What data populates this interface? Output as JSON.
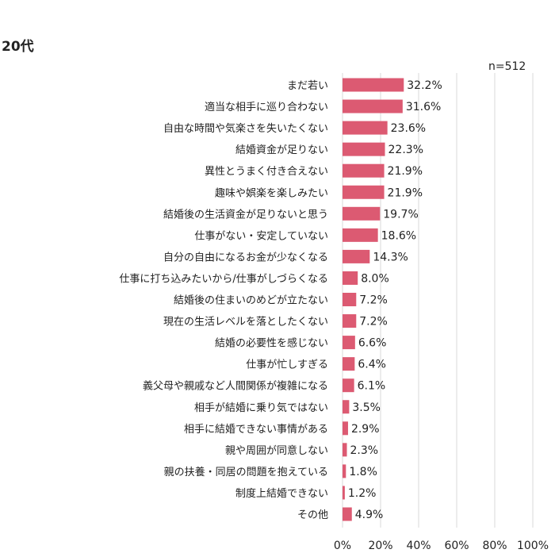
{
  "chart_data": {
    "type": "bar",
    "orientation": "horizontal",
    "title": "20代",
    "sample_size": "n=512",
    "categories": [
      "まだ若い",
      "適当な相手に巡り合わない",
      "自由な時間や気楽さを失いたくない",
      "結婚資金が足りない",
      "異性とうまく付き合えない",
      "趣味や娯楽を楽しみたい",
      "結婚後の生活資金が足りないと思う",
      "仕事がない・安定していない",
      "自分の自由になるお金が少なくなる",
      "仕事に打ち込みたいから/仕事がしづらくなる",
      "結婚後の住まいのめどが立たない",
      "現在の生活レベルを落としたくない",
      "結婚の必要性を感じない",
      "仕事が忙しすぎる",
      "義父母や親戚など人間関係が複雑になる",
      "相手が結婚に乗り気ではない",
      "相手に結婚できない事情がある",
      "親や周囲が同意しない",
      "親の扶養・同居の問題を抱えている",
      "制度上結婚できない",
      "その他"
    ],
    "values": [
      32.2,
      31.6,
      23.6,
      22.3,
      21.9,
      21.9,
      19.7,
      18.6,
      14.3,
      8.0,
      7.2,
      7.2,
      6.6,
      6.4,
      6.1,
      3.5,
      2.9,
      2.3,
      1.8,
      1.2,
      4.9
    ],
    "value_labels": [
      "32.2%",
      "31.6%",
      "23.6%",
      "22.3%",
      "21.9%",
      "21.9%",
      "19.7%",
      "18.6%",
      "14.3%",
      "8.0%",
      "7.2%",
      "7.2%",
      "6.6%",
      "6.4%",
      "6.1%",
      "3.5%",
      "2.9%",
      "2.3%",
      "1.8%",
      "1.2%",
      "4.9%"
    ],
    "xlim": [
      0,
      100
    ],
    "x_ticks": [
      0,
      20,
      40,
      60,
      80,
      100
    ],
    "x_tick_labels": [
      "0%",
      "20%",
      "40%",
      "60%",
      "80%",
      "100%"
    ],
    "grid": "vertical",
    "bar_color": "#dc5a72",
    "grid_color": "#d9d9d9"
  }
}
